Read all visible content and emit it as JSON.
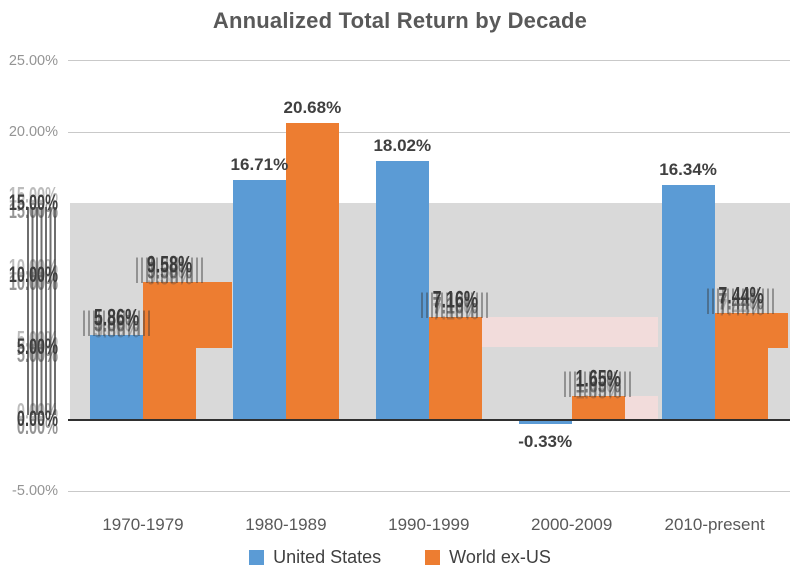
{
  "title": "Annualized Total Return by Decade",
  "chart_data": {
    "type": "bar",
    "title": "Annualized Total Return by Decade",
    "categories": [
      "1970-1979",
      "1980-1989",
      "1990-1999",
      "2000-2009",
      "2010-present"
    ],
    "series": [
      {
        "name": "United States",
        "color": "#5b9bd5",
        "values": [
          5.86,
          16.71,
          18.02,
          -0.33,
          16.34
        ],
        "labels": [
          "5.86%",
          "16.71%",
          "18.02%",
          "-0.33%",
          "16.34%"
        ],
        "label_smeared": [
          true,
          false,
          false,
          false,
          false
        ]
      },
      {
        "name": "World ex-US",
        "color": "#ed7d31",
        "values": [
          9.58,
          20.68,
          7.16,
          1.65,
          7.44
        ],
        "labels": [
          "9.58%",
          "20.68%",
          "7.16%",
          "1.65%",
          "7.44%"
        ],
        "label_smeared": [
          true,
          false,
          true,
          true,
          true
        ]
      }
    ],
    "xlabel": "",
    "ylabel": "",
    "ylim": [
      -5,
      25
    ],
    "yticks": [
      {
        "label": "25.00%",
        "value": 25,
        "smeared": false,
        "gridline": true
      },
      {
        "label": "20.00%",
        "value": 20,
        "smeared": false,
        "gridline": true
      },
      {
        "label": "15.00%",
        "value": 15,
        "smeared": true,
        "gridline": false
      },
      {
        "label": "10.00%",
        "value": 10,
        "smeared": true,
        "gridline": false
      },
      {
        "label": "5.00%",
        "value": 5,
        "smeared": true,
        "gridline": false
      },
      {
        "label": "0.00%",
        "value": 0,
        "smeared": true,
        "gridline": false
      },
      {
        "label": "-5.00%",
        "value": -5,
        "smeared": false,
        "gridline": true
      }
    ],
    "legend_position": "bottom",
    "grid": "horizontal",
    "highlight_band": {
      "from_pct": 0,
      "to_pct": 15.05,
      "color": "#d9d9d9"
    },
    "overlay_artifacts": [
      {
        "kind": "orange-smear",
        "color": "#ed7d31",
        "x": 196,
        "y": 282,
        "w": 36,
        "h": 65.5
      },
      {
        "kind": "pink-smear",
        "color": "#f2dcdb",
        "x": 482,
        "y": 317,
        "w": 176,
        "h": 30
      },
      {
        "kind": "pink-smear",
        "color": "#f2dcdb",
        "x": 625,
        "y": 396,
        "w": 33,
        "h": 23.5
      },
      {
        "kind": "orange-smear",
        "color": "#ed7d31",
        "x": 768,
        "y": 313,
        "w": 20,
        "h": 34.5
      }
    ],
    "colors": {
      "axis_line": "#2f2f2f",
      "gridline": "#c9c9c9",
      "tick_label": "#949494",
      "smeared_text": "#3b3b3b",
      "crisp_label": "#404040",
      "category_label": "#595959",
      "title": "#595959"
    }
  }
}
